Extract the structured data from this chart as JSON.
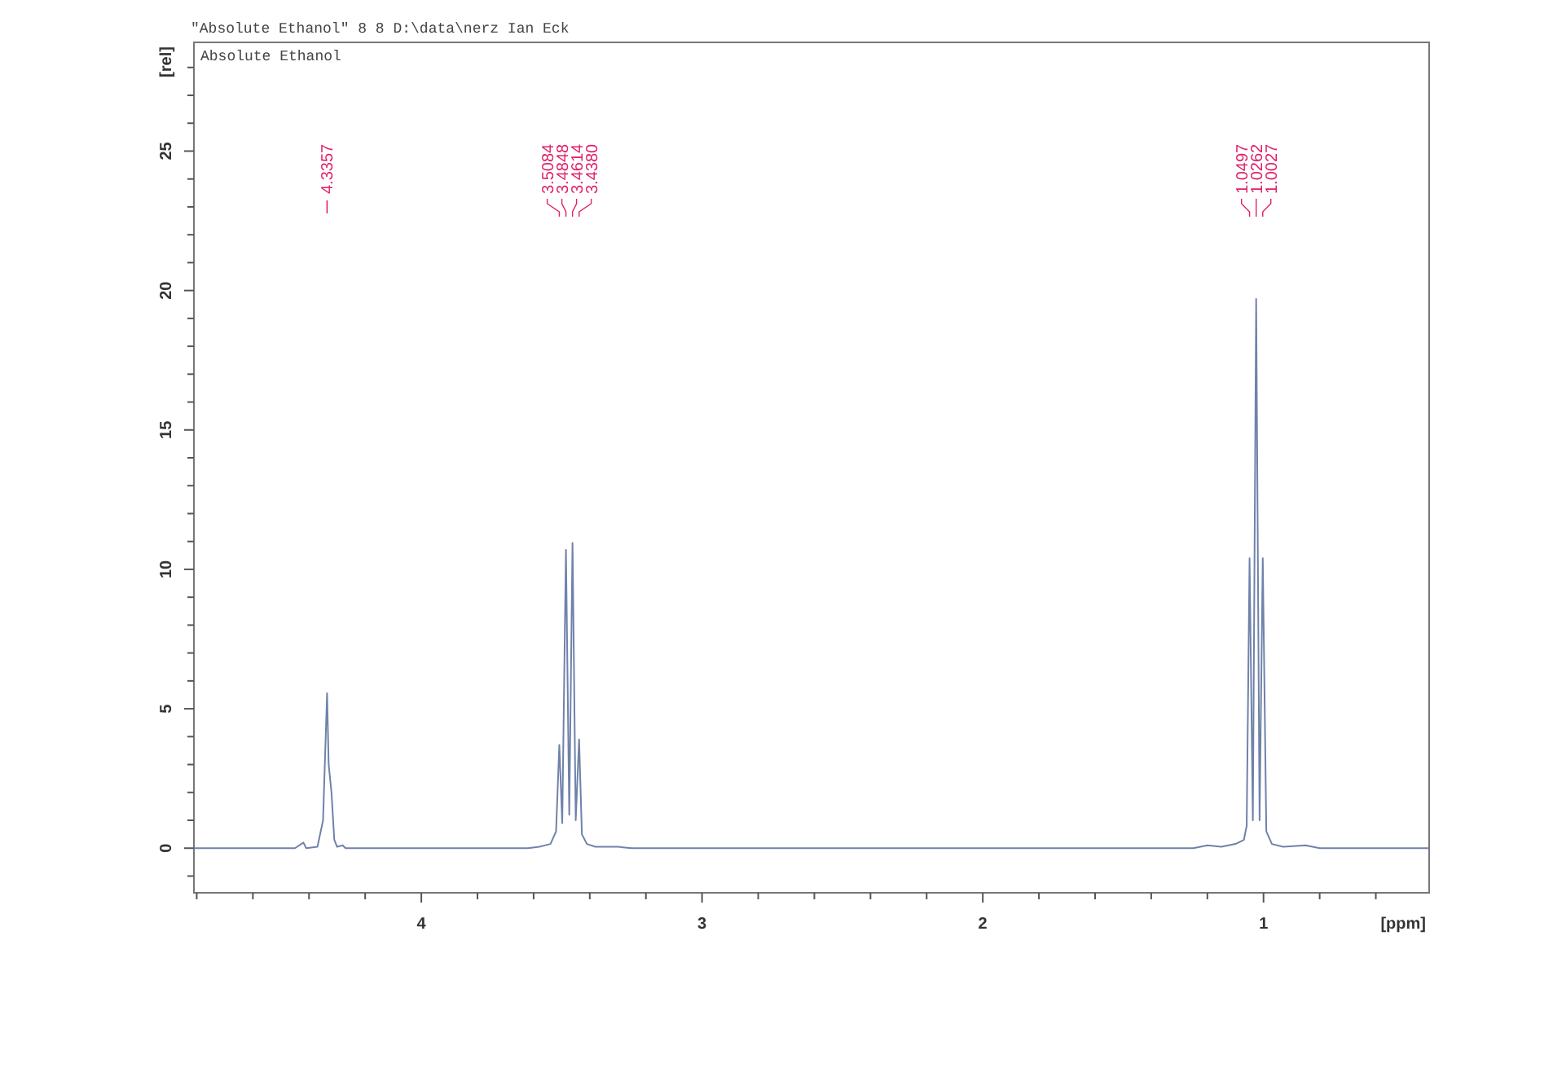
{
  "chart_data": {
    "type": "line",
    "title": "\"Absolute Ethanol\"  8  8  D:\\data\\nerz  Ian Eck",
    "subtitle": "Absolute Ethanol",
    "xlabel": "[ppm]",
    "ylabel": "[rel]",
    "xlim": [
      4.81,
      0.41
    ],
    "ylim": [
      -1.6,
      28.9
    ],
    "xticks": [
      {
        "value": 4.8,
        "label": null
      },
      {
        "value": 4.6,
        "label": null
      },
      {
        "value": 4.4,
        "label": null
      },
      {
        "value": 4.2,
        "label": null
      },
      4,
      {
        "value": 3.8,
        "label": null
      },
      {
        "value": 3.6,
        "label": null
      },
      {
        "value": 3.4,
        "label": null
      },
      {
        "value": 3.2,
        "label": null
      },
      3,
      {
        "value": 2.8,
        "label": null
      },
      {
        "value": 2.6,
        "label": null
      },
      {
        "value": 2.4,
        "label": null
      },
      {
        "value": 2.2,
        "label": null
      },
      2,
      {
        "value": 1.8,
        "label": null
      },
      {
        "value": 1.6,
        "label": null
      },
      {
        "value": 1.4,
        "label": null
      },
      {
        "value": 1.2,
        "label": null
      },
      1,
      {
        "value": 0.8,
        "label": null
      },
      {
        "value": 0.6,
        "label": null
      }
    ],
    "yticks": [
      {
        "value": -1,
        "label": null
      },
      0,
      {
        "value": 1,
        "label": null
      },
      {
        "value": 2,
        "label": null
      },
      {
        "value": 3,
        "label": null
      },
      {
        "value": 4,
        "label": null
      },
      5,
      {
        "value": 6,
        "label": null
      },
      {
        "value": 7,
        "label": null
      },
      {
        "value": 8,
        "label": null
      },
      {
        "value": 9,
        "label": null
      },
      10,
      {
        "value": 11,
        "label": null
      },
      {
        "value": 12,
        "label": null
      },
      {
        "value": 13,
        "label": null
      },
      {
        "value": 14,
        "label": null
      },
      15,
      {
        "value": 16,
        "label": null
      },
      {
        "value": 17,
        "label": null
      },
      {
        "value": 18,
        "label": null
      },
      {
        "value": 19,
        "label": null
      },
      20,
      {
        "value": 21,
        "label": null
      },
      {
        "value": 22,
        "label": null
      },
      {
        "value": 23,
        "label": null
      },
      {
        "value": 24,
        "label": null
      },
      25,
      {
        "value": 26,
        "label": null
      },
      {
        "value": 27,
        "label": null
      },
      {
        "value": 28,
        "label": null
      }
    ],
    "grid": false,
    "marker": "none",
    "line_style": "solid",
    "series": [
      {
        "color": "#6f82aa",
        "x": [
          4.81,
          4.45,
          4.42,
          4.41,
          4.37,
          4.35,
          4.3357,
          4.33,
          4.32,
          4.31,
          4.3,
          4.28,
          4.27,
          3.62,
          3.58,
          3.54,
          3.52,
          3.5084,
          3.498,
          3.4848,
          3.473,
          3.4614,
          3.45,
          3.438,
          3.428,
          3.41,
          3.38,
          3.3,
          3.25,
          1.25,
          1.2,
          1.15,
          1.1,
          1.07,
          1.06,
          1.0497,
          1.038,
          1.0262,
          1.014,
          1.0027,
          0.99,
          0.97,
          0.93,
          0.85,
          0.8,
          0.41
        ],
        "values": [
          0,
          0,
          0.2,
          0,
          0.05,
          1.0,
          5.56,
          3.0,
          2.0,
          0.3,
          0.05,
          0.1,
          0,
          0,
          0.05,
          0.15,
          0.6,
          3.7,
          0.9,
          10.7,
          1.2,
          10.95,
          1.0,
          3.9,
          0.5,
          0.15,
          0.05,
          0.05,
          0,
          0,
          0.1,
          0.05,
          0.15,
          0.3,
          0.8,
          10.4,
          1.0,
          19.7,
          1.0,
          10.4,
          0.6,
          0.15,
          0.05,
          0.1,
          0,
          0
        ]
      }
    ],
    "annotations": [
      {
        "text": "4.3357",
        "x": 4.3357
      },
      {
        "text": "3.5084",
        "x": 3.5084
      },
      {
        "text": "3.4848",
        "x": 3.4848
      },
      {
        "text": "3.4614",
        "x": 3.4614
      },
      {
        "text": "3.4380",
        "x": 3.438
      },
      {
        "text": "1.0497",
        "x": 1.0497
      },
      {
        "text": "1.0262",
        "x": 1.0262
      },
      {
        "text": "1.0027",
        "x": 1.0027
      }
    ]
  }
}
